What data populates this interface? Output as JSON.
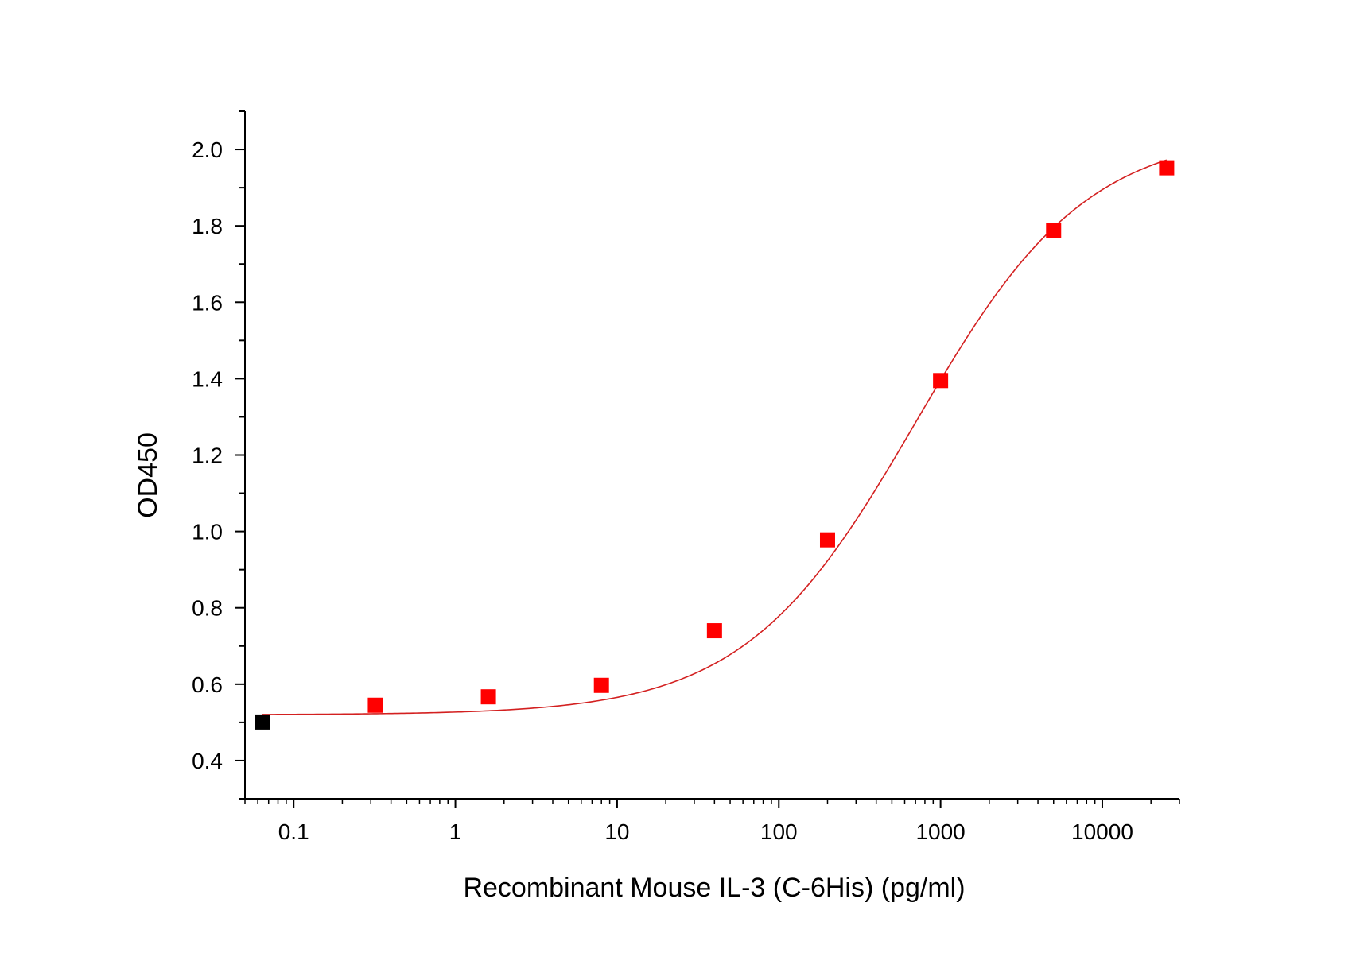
{
  "chart_data": {
    "type": "scatter",
    "title": "",
    "xlabel": "Recombinant Mouse IL-3 (C-6His) (pg/ml)",
    "ylabel": "OD450",
    "x_scale": "log",
    "xlim": [
      0.05,
      30000
    ],
    "ylim": [
      0.3,
      2.1
    ],
    "x_ticks": [
      0.1,
      1,
      10,
      100,
      1000,
      10000
    ],
    "x_tick_labels": [
      "0.1",
      "1",
      "10",
      "100",
      "1000",
      "10000"
    ],
    "y_ticks": [
      0.4,
      0.6,
      0.8,
      1.0,
      1.2,
      1.4,
      1.6,
      1.8,
      2.0
    ],
    "y_tick_labels": [
      "0.4",
      "0.6",
      "0.8",
      "1.0",
      "1.2",
      "1.4",
      "1.6",
      "1.8",
      "2.0"
    ],
    "grid": false,
    "series": [
      {
        "color": "#ff0000",
        "marker": "square",
        "x": [
          0.32,
          1.6,
          8,
          40,
          200,
          1000,
          5000,
          25000
        ],
        "y": [
          0.545,
          0.567,
          0.597,
          0.74,
          0.978,
          1.395,
          1.788,
          1.952
        ]
      },
      {
        "color": "#000000",
        "marker": "square",
        "x": [
          0.064
        ],
        "y": [
          0.501
        ]
      }
    ],
    "fit_curve": {
      "color": "#d32020",
      "model": "4PL",
      "bottom": 0.52,
      "top": 2.05,
      "ec50": 700,
      "hill": 0.82,
      "x_range": [
        0.064,
        25000
      ]
    }
  }
}
